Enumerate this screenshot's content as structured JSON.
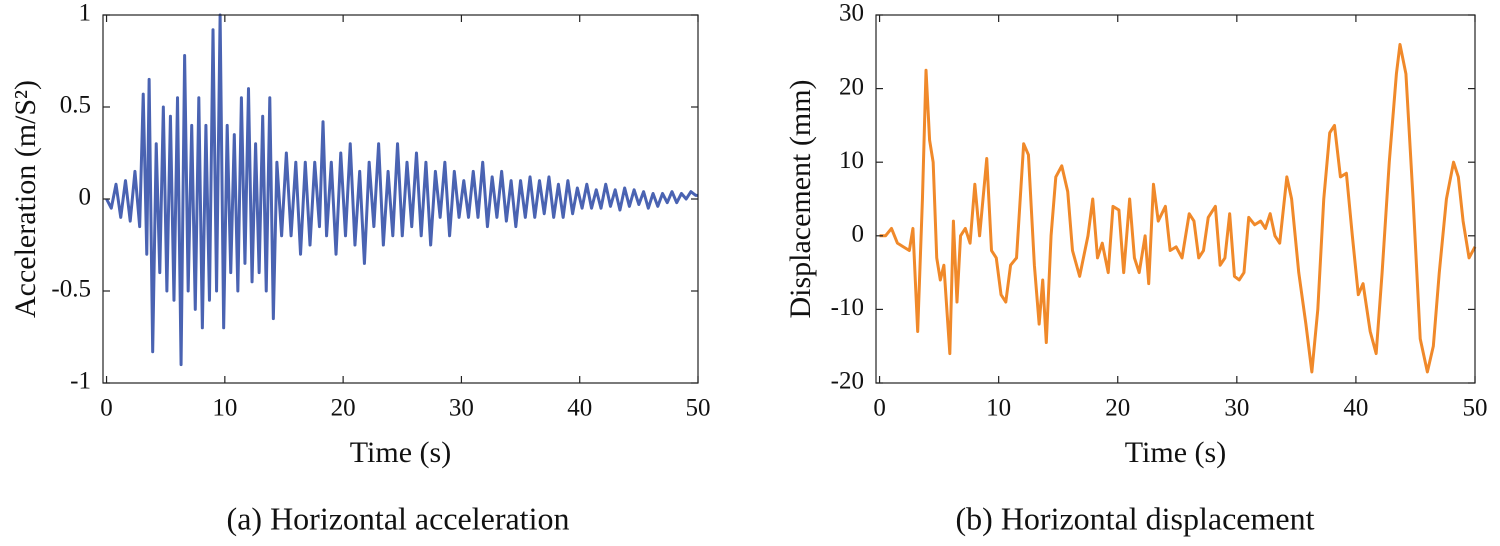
{
  "chart_data": [
    {
      "type": "line",
      "caption": "(a) Horizontal acceleration",
      "xlabel": "Time (s)",
      "ylabel": "Acceleration (m/S²)",
      "xlim": [
        -0.3,
        50
      ],
      "xticks": [
        0,
        10,
        20,
        30,
        40,
        50
      ],
      "ylim": [
        -1,
        1
      ],
      "yticks": [
        -1,
        -0.5,
        0,
        0.5,
        1
      ],
      "x": [
        0,
        0.4,
        0.8,
        1.2,
        1.6,
        2.0,
        2.4,
        2.8,
        3.1,
        3.4,
        3.6,
        3.9,
        4.2,
        4.5,
        4.8,
        5.1,
        5.4,
        5.7,
        6.0,
        6.3,
        6.6,
        6.9,
        7.2,
        7.5,
        7.8,
        8.1,
        8.4,
        8.7,
        9.0,
        9.3,
        9.6,
        9.9,
        10.2,
        10.5,
        10.8,
        11.1,
        11.4,
        11.7,
        12.0,
        12.3,
        12.6,
        12.9,
        13.2,
        13.5,
        13.8,
        14.1,
        14.4,
        14.8,
        15.2,
        15.6,
        16.0,
        16.4,
        16.8,
        17.2,
        17.6,
        18.0,
        18.3,
        18.6,
        19.0,
        19.4,
        19.8,
        20.2,
        20.6,
        21.0,
        21.4,
        21.8,
        22.2,
        22.6,
        23.0,
        23.4,
        23.8,
        24.2,
        24.6,
        25.0,
        25.4,
        25.8,
        26.2,
        26.6,
        27.0,
        27.4,
        27.8,
        28.2,
        28.6,
        29.0,
        29.4,
        29.8,
        30.2,
        30.6,
        31.0,
        31.4,
        31.8,
        32.2,
        32.6,
        33.0,
        33.4,
        33.8,
        34.2,
        34.6,
        35.0,
        35.4,
        35.8,
        36.2,
        36.6,
        37.0,
        37.4,
        37.8,
        38.2,
        38.6,
        39.0,
        39.4,
        39.8,
        40.2,
        40.6,
        41.0,
        41.4,
        41.8,
        42.2,
        42.6,
        43.0,
        43.4,
        43.8,
        44.2,
        44.6,
        45.0,
        45.4,
        45.8,
        46.2,
        46.6,
        47.0,
        47.4,
        47.8,
        48.2,
        48.6,
        49.0,
        49.4,
        49.8,
        50
      ],
      "series": [
        {
          "name": "Acceleration",
          "color": "#4a63b2",
          "values": [
            0,
            -0.05,
            0.08,
            -0.1,
            0.1,
            -0.12,
            0.15,
            -0.15,
            0.57,
            -0.3,
            0.65,
            -0.83,
            0.3,
            -0.4,
            0.5,
            -0.5,
            0.45,
            -0.55,
            0.55,
            -0.9,
            0.78,
            -0.5,
            0.4,
            -0.6,
            0.55,
            -0.7,
            0.4,
            -0.55,
            0.92,
            -0.5,
            1.0,
            -0.7,
            0.4,
            -0.4,
            0.35,
            -0.5,
            0.55,
            -0.35,
            0.6,
            -0.45,
            0.3,
            -0.4,
            0.45,
            -0.5,
            0.55,
            -0.65,
            0.2,
            -0.2,
            0.25,
            -0.2,
            0.2,
            -0.3,
            0.2,
            -0.25,
            0.2,
            -0.15,
            0.42,
            -0.2,
            0.2,
            -0.3,
            0.25,
            -0.2,
            0.3,
            -0.25,
            0.15,
            -0.35,
            0.2,
            -0.15,
            0.3,
            -0.25,
            0.15,
            -0.2,
            0.3,
            -0.2,
            0.2,
            -0.15,
            0.25,
            -0.2,
            0.2,
            -0.25,
            0.15,
            -0.1,
            0.2,
            -0.2,
            0.15,
            -0.1,
            0.1,
            -0.1,
            0.15,
            -0.1,
            0.2,
            -0.15,
            0.12,
            -0.1,
            0.15,
            -0.12,
            0.1,
            -0.15,
            0.1,
            -0.1,
            0.12,
            -0.1,
            0.1,
            -0.08,
            0.12,
            -0.1,
            0.08,
            -0.1,
            0.1,
            -0.08,
            0.06,
            -0.05,
            0.08,
            -0.05,
            0.05,
            -0.05,
            0.08,
            -0.04,
            0.05,
            -0.06,
            0.06,
            -0.04,
            0.05,
            -0.03,
            0.04,
            -0.05,
            0.03,
            -0.04,
            0.03,
            -0.02,
            0.04,
            -0.02,
            0.03,
            0.0,
            0.04,
            0.02,
            0.02
          ]
        }
      ]
    },
    {
      "type": "line",
      "caption": "(b) Horizontal displacement",
      "xlabel": "Time (s)",
      "ylabel": "Displacement (mm)",
      "xlim": [
        -0.3,
        50
      ],
      "xticks": [
        0,
        10,
        20,
        30,
        40,
        50
      ],
      "ylim": [
        -20,
        30
      ],
      "yticks": [
        -20,
        -10,
        0,
        10,
        20,
        30
      ],
      "x": [
        0,
        0.5,
        1,
        1.5,
        2,
        2.5,
        2.8,
        3.2,
        3.6,
        3.9,
        4.2,
        4.5,
        4.8,
        5.1,
        5.4,
        5.9,
        6.2,
        6.5,
        6.8,
        7.2,
        7.6,
        8,
        8.4,
        9,
        9.4,
        9.8,
        10.2,
        10.6,
        11,
        11.5,
        12.1,
        12.5,
        13,
        13.4,
        13.7,
        14,
        14.4,
        14.8,
        15.3,
        15.8,
        16.2,
        16.8,
        17.5,
        17.9,
        18.3,
        18.7,
        19.2,
        19.6,
        20.1,
        20.5,
        21,
        21.4,
        21.8,
        22.3,
        22.6,
        23,
        23.4,
        24,
        24.4,
        24.9,
        25.4,
        26,
        26.4,
        26.8,
        27.2,
        27.6,
        28.2,
        28.6,
        29,
        29.4,
        29.8,
        30.2,
        30.6,
        31,
        31.5,
        32,
        32.4,
        32.8,
        33.2,
        33.6,
        34.2,
        34.6,
        35.2,
        35.8,
        36.3,
        36.8,
        37.3,
        37.8,
        38.2,
        38.7,
        39.2,
        39.7,
        40.2,
        40.6,
        41.2,
        41.7,
        42.2,
        42.8,
        43.4,
        43.7,
        44.2,
        44.8,
        45.4,
        46,
        46.5,
        47,
        47.6,
        48.2,
        48.6,
        49,
        49.5,
        50
      ],
      "series": [
        {
          "name": "Displacement",
          "color": "#f0892a",
          "values": [
            0,
            0,
            1,
            -1,
            -1.5,
            -2,
            1,
            -13,
            5,
            22.5,
            13,
            10,
            -3,
            -6,
            -4,
            -16,
            2,
            -9,
            0,
            1,
            -1,
            7,
            0,
            10.5,
            -2,
            -3,
            -8,
            -9,
            -4,
            -3,
            12.5,
            11,
            -4,
            -12,
            -6,
            -14.5,
            0,
            8,
            9.5,
            6,
            -2,
            -5.5,
            0,
            5,
            -3,
            -1,
            -5,
            4,
            3.5,
            -5,
            5,
            -3,
            -5,
            0,
            -6.5,
            7,
            2,
            4,
            -2,
            -1.5,
            -3,
            3,
            2,
            -3,
            -2,
            2.5,
            4,
            -4,
            -3,
            3,
            -5.5,
            -6,
            -5,
            2.5,
            1.5,
            2,
            1,
            3,
            0,
            -1,
            8,
            5,
            -5,
            -12,
            -18.5,
            -10,
            5,
            14,
            15,
            8,
            8.5,
            0,
            -8,
            -6.5,
            -13,
            -16,
            -5,
            10,
            22,
            26,
            22,
            5,
            -14,
            -18.5,
            -15,
            -5,
            5,
            10,
            8,
            2,
            -3,
            -1.5
          ]
        }
      ]
    }
  ]
}
